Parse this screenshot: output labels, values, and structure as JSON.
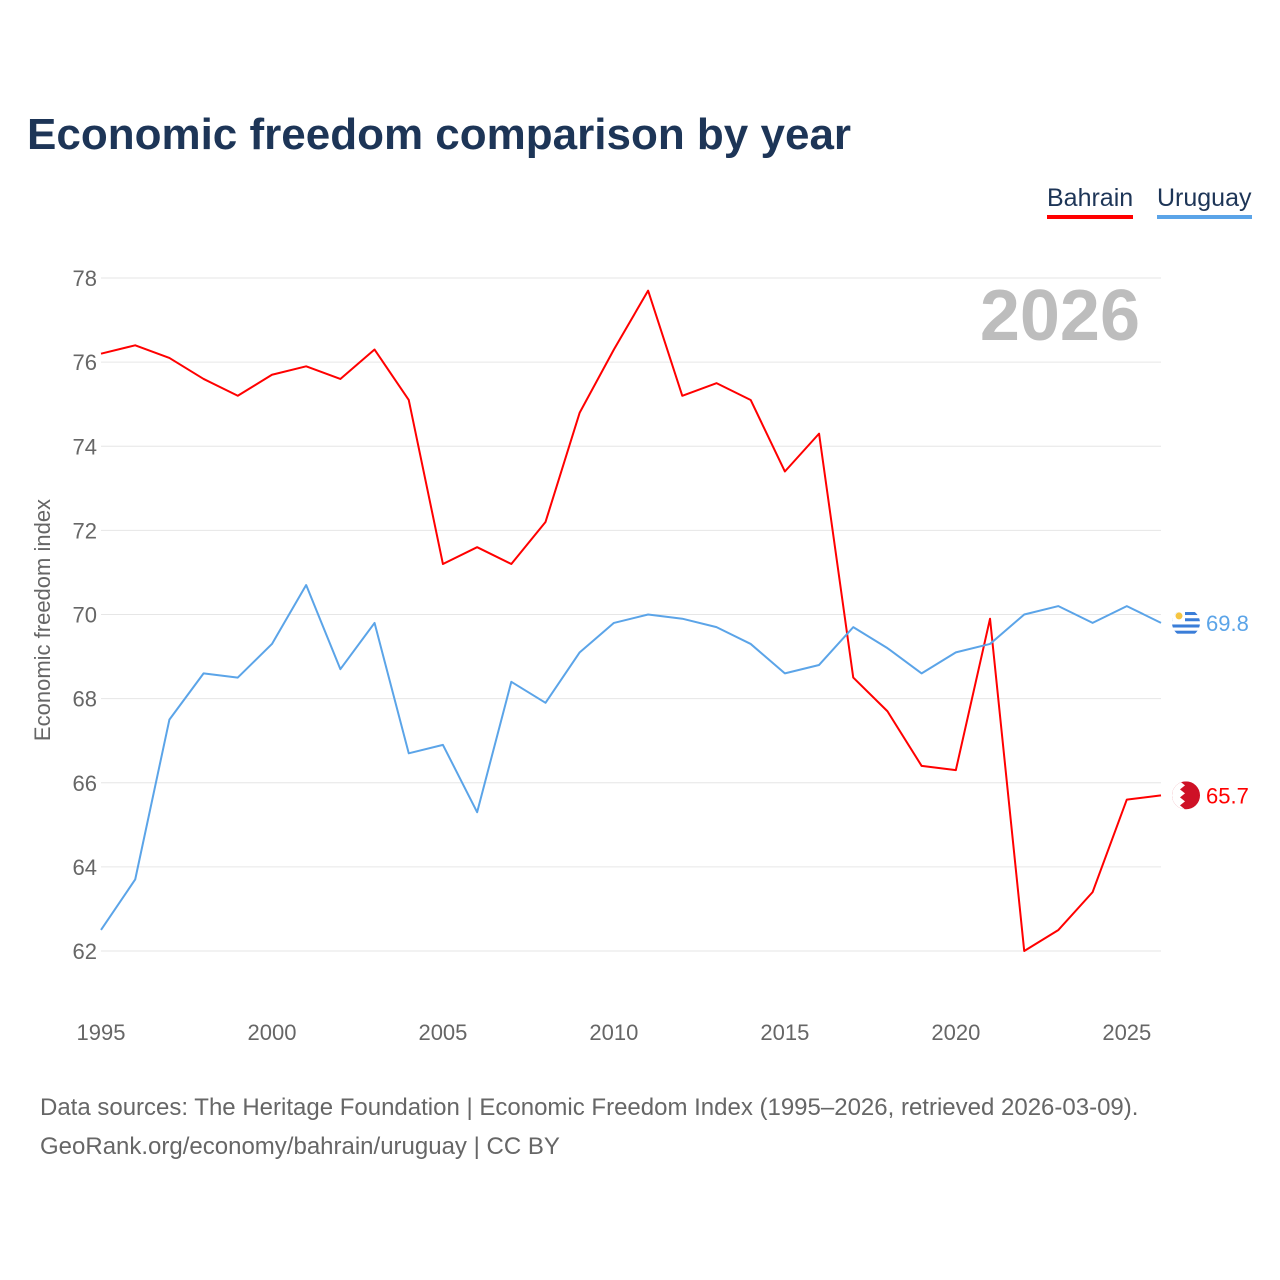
{
  "title": "Economic freedom comparison by year",
  "footer": {
    "line1": "Data sources: The Heritage Foundation | Economic Freedom Index (1995–2026, retrieved 2026-03-09).",
    "line2": "GeoRank.org/economy/bahrain/uruguay | CC BY"
  },
  "chart_data": {
    "type": "line",
    "title": "Economic freedom comparison by year",
    "xlabel": "",
    "ylabel": "Economic freedom index",
    "year_label": "2026",
    "xlim": [
      1995,
      2026
    ],
    "ylim": [
      62,
      78
    ],
    "xticks": [
      "1995",
      "2000",
      "2005",
      "2010",
      "2015",
      "2020",
      "2025"
    ],
    "yticks": [
      "62",
      "64",
      "66",
      "68",
      "70",
      "72",
      "74",
      "76",
      "78"
    ],
    "grid": true,
    "legend": "top-right",
    "x": [
      1995,
      1996,
      1997,
      1998,
      1999,
      2000,
      2001,
      2002,
      2003,
      2004,
      2005,
      2006,
      2007,
      2008,
      2009,
      2010,
      2011,
      2012,
      2013,
      2014,
      2015,
      2016,
      2017,
      2018,
      2019,
      2020,
      2021,
      2022,
      2023,
      2024,
      2025,
      2026
    ],
    "series": [
      {
        "name": "Bahrain",
        "color": "#ff0000",
        "end_label": "65.7",
        "values": [
          76.2,
          76.4,
          76.1,
          75.6,
          75.2,
          75.7,
          75.9,
          75.6,
          76.3,
          75.1,
          71.2,
          71.6,
          71.2,
          72.2,
          74.8,
          76.3,
          77.7,
          75.2,
          75.5,
          75.1,
          73.4,
          74.3,
          68.5,
          67.7,
          66.4,
          66.3,
          69.9,
          62.0,
          62.5,
          63.4,
          65.6,
          65.7
        ]
      },
      {
        "name": "Uruguay",
        "color": "#5ba4e8",
        "end_label": "69.8",
        "values": [
          62.5,
          63.7,
          67.5,
          68.6,
          68.5,
          69.3,
          70.7,
          68.7,
          69.8,
          66.7,
          66.9,
          65.3,
          68.4,
          67.9,
          69.1,
          69.8,
          70.0,
          69.9,
          69.7,
          69.3,
          68.6,
          68.8,
          69.7,
          69.2,
          68.6,
          69.1,
          69.3,
          70.0,
          70.2,
          69.8,
          70.2,
          69.8
        ]
      }
    ]
  }
}
